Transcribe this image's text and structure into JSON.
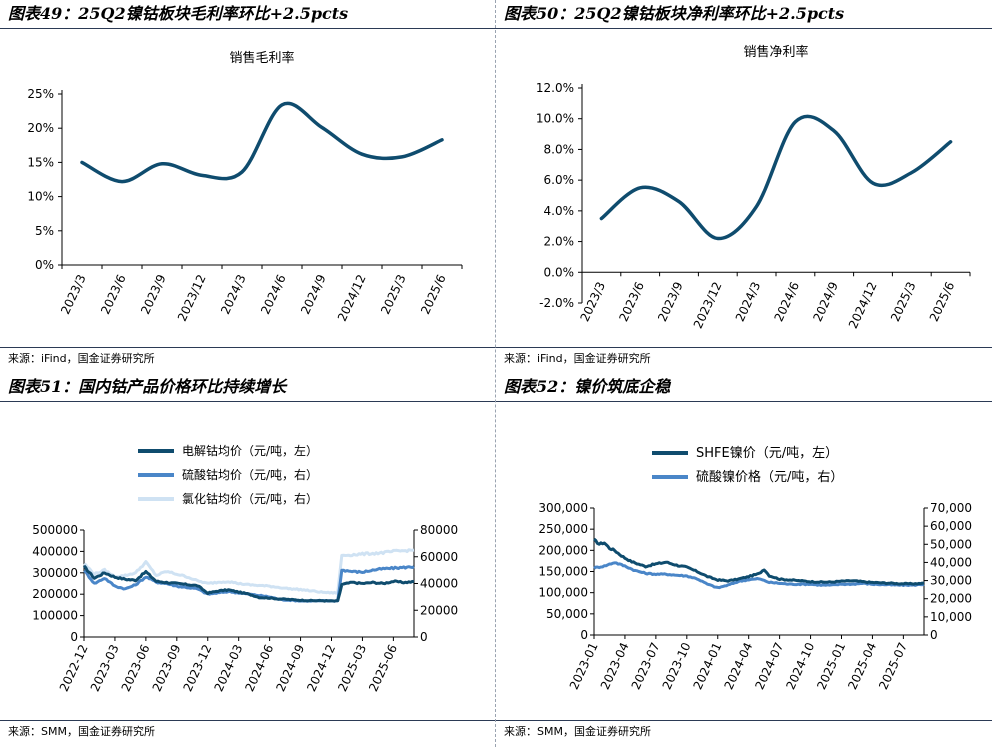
{
  "panels": [
    {
      "id": "49",
      "title": "图表49：25Q2镍钴板块毛利率环比+2.5pcts",
      "source": "来源：iFind，国金证券研究所"
    },
    {
      "id": "50",
      "title": "图表50：25Q2镍钴板块净利率环比+2.5pcts",
      "source": "来源：iFind，国金证券研究所"
    },
    {
      "id": "51",
      "title": "图表51：国内钴产品价格环比持续增长",
      "source": "来源：SMM，国金证券研究所"
    },
    {
      "id": "52",
      "title": "图表52：镍价筑底企稳",
      "source": "来源：SMM，国金证券研究所"
    }
  ],
  "chart_data": [
    {
      "type": "line",
      "title": "销售毛利率",
      "categories": [
        "2023/3",
        "2023/6",
        "2023/9",
        "2023/12",
        "2024/3",
        "2024/6",
        "2024/9",
        "2024/12",
        "2025/3",
        "2025/6"
      ],
      "series": [
        {
          "name": "销售毛利率",
          "values": [
            15.0,
            12.2,
            14.8,
            13.1,
            13.6,
            23.4,
            20.1,
            16.2,
            15.8,
            18.3
          ],
          "color": "#0f4c6e"
        }
      ],
      "ylim": [
        0,
        25
      ],
      "yticks": [
        0,
        5,
        10,
        15,
        20,
        25
      ],
      "ytick_labels": [
        "0%",
        "5%",
        "10%",
        "15%",
        "20%",
        "25%"
      ]
    },
    {
      "type": "line",
      "title": "销售净利率",
      "categories": [
        "2023/3",
        "2023/6",
        "2023/9",
        "2023/12",
        "2024/3",
        "2024/6",
        "2024/9",
        "2024/12",
        "2025/3",
        "2025/6"
      ],
      "series": [
        {
          "name": "销售净利率",
          "values": [
            3.5,
            5.5,
            4.6,
            2.2,
            4.3,
            9.8,
            9.2,
            5.8,
            6.5,
            8.5
          ],
          "color": "#0f4c6e"
        }
      ],
      "ylim": [
        -2,
        12
      ],
      "yticks": [
        -2,
        0,
        2,
        4,
        6,
        8,
        10,
        12
      ],
      "ytick_labels": [
        "-2.0%",
        "0.0%",
        "2.0%",
        "4.0%",
        "6.0%",
        "8.0%",
        "10.0%",
        "12.0%"
      ]
    },
    {
      "type": "line",
      "title": "",
      "x_labels": [
        "2022-12",
        "2023-03",
        "2023-06",
        "2023-09",
        "2023-12",
        "2024-03",
        "2024-06",
        "2024-09",
        "2024-12",
        "2025-03",
        "2025-06"
      ],
      "x_label_positions": [
        0,
        3,
        6,
        9,
        12,
        15,
        18,
        21,
        24,
        27,
        30
      ],
      "x_range": [
        0,
        32
      ],
      "ylim_left": [
        0,
        500000
      ],
      "yticks_left": [
        0,
        100000,
        200000,
        300000,
        400000,
        500000
      ],
      "ytick_labels_left": [
        "0",
        "100000",
        "200000",
        "300000",
        "400000",
        "500000"
      ],
      "ylim_right": [
        0,
        80000
      ],
      "yticks_right": [
        0,
        20000,
        40000,
        60000,
        80000
      ],
      "ytick_labels_right": [
        "0",
        "20000",
        "40000",
        "60000",
        "80000"
      ],
      "series": [
        {
          "name": "电解钴均价（元/吨，左）",
          "axis": "left",
          "color": "#0f4c6e",
          "x": [
            0,
            1,
            2,
            3,
            4,
            5,
            6,
            7,
            8,
            9,
            10,
            11,
            12,
            13,
            14,
            15,
            16,
            17,
            18,
            19,
            20,
            21,
            22,
            23,
            24,
            24.6,
            25,
            26,
            27,
            28,
            29,
            30,
            31,
            32
          ],
          "values": [
            330000,
            275000,
            300000,
            280000,
            270000,
            265000,
            305000,
            260000,
            255000,
            250000,
            245000,
            240000,
            205000,
            215000,
            220000,
            210000,
            200000,
            185000,
            182000,
            178000,
            175000,
            172000,
            170000,
            170000,
            168000,
            168000,
            245000,
            255000,
            250000,
            255000,
            250000,
            260000,
            255000,
            258000
          ]
        },
        {
          "name": "硫酸钴均价（元/吨，右）",
          "axis": "right",
          "color": "#4a86c8",
          "x": [
            0,
            1,
            2,
            3,
            4,
            5,
            6,
            7,
            8,
            9,
            10,
            11,
            12,
            13,
            14,
            15,
            16,
            17,
            18,
            19,
            20,
            21,
            22,
            23,
            24,
            24.6,
            25,
            26,
            27,
            28,
            29,
            30,
            31,
            32
          ],
          "values": [
            50000,
            40000,
            44000,
            38000,
            36000,
            39000,
            45000,
            41000,
            40000,
            38000,
            37000,
            36000,
            32000,
            33000,
            34000,
            33000,
            32000,
            31000,
            30000,
            28000,
            27500,
            27000,
            27000,
            27000,
            27000,
            27000,
            50000,
            49000,
            48500,
            50000,
            51000,
            51500,
            52000,
            52500
          ]
        },
        {
          "name": "氯化钴均价（元/吨，右）",
          "axis": "right",
          "color": "#cfe2f3",
          "x": [
            0,
            1,
            2,
            3,
            4,
            5,
            6,
            7,
            8,
            9,
            10,
            11,
            12,
            13,
            14,
            15,
            16,
            17,
            18,
            19,
            20,
            21,
            22,
            23,
            24,
            24.6,
            25,
            26,
            27,
            28,
            29,
            30,
            31,
            32
          ],
          "values": [
            55000,
            47000,
            50000,
            45000,
            46000,
            48000,
            56000,
            46000,
            49000,
            47000,
            45000,
            42000,
            40000,
            41000,
            41500,
            40000,
            39000,
            38500,
            38000,
            37000,
            36000,
            35500,
            34500,
            33500,
            33000,
            33000,
            61000,
            61500,
            62000,
            62500,
            63000,
            64000,
            64500,
            65000
          ]
        }
      ]
    },
    {
      "type": "line",
      "title": "",
      "x_labels": [
        "2023-01",
        "2023-04",
        "2023-07",
        "2023-10",
        "2024-01",
        "2024-04",
        "2024-07",
        "2024-10",
        "2025-01",
        "2025-04",
        "2025-07"
      ],
      "x_label_positions": [
        0,
        3,
        6,
        9,
        12,
        15,
        18,
        21,
        24,
        27,
        30
      ],
      "x_range": [
        0,
        32
      ],
      "ylim_left": [
        0,
        300000
      ],
      "yticks_left": [
        0,
        50000,
        100000,
        150000,
        200000,
        250000,
        300000
      ],
      "ytick_labels_left": [
        "0",
        "50,000",
        "100,000",
        "150,000",
        "200,000",
        "250,000",
        "300,000"
      ],
      "ylim_right": [
        0,
        70000
      ],
      "yticks_right": [
        0,
        10000,
        20000,
        30000,
        40000,
        50000,
        60000,
        70000
      ],
      "ytick_labels_right": [
        "0",
        "10,000",
        "20,000",
        "30,000",
        "40,000",
        "50,000",
        "60,000",
        "70,000"
      ],
      "series": [
        {
          "name": "SHFE镍价（元/吨，左）",
          "axis": "left",
          "color": "#0f4c6e",
          "x": [
            0,
            0.5,
            1,
            1.5,
            2,
            2.5,
            3,
            3.5,
            4,
            5,
            6,
            7,
            8,
            9,
            10,
            11,
            12,
            13,
            14,
            15,
            16,
            16.5,
            17,
            18,
            19,
            20,
            21,
            22,
            23,
            24,
            25,
            26,
            27,
            28,
            29,
            30,
            31,
            32
          ],
          "values": [
            225000,
            215000,
            218000,
            205000,
            200000,
            190000,
            182000,
            175000,
            170000,
            162000,
            168000,
            172000,
            165000,
            160000,
            150000,
            138000,
            130000,
            128000,
            132000,
            138000,
            145000,
            155000,
            140000,
            132000,
            130000,
            128000,
            126000,
            125000,
            125000,
            127000,
            128000,
            126000,
            124000,
            123000,
            122000,
            121000,
            121000,
            122000
          ]
        },
        {
          "name": "硫酸镍价格（元/吨，右）",
          "axis": "right",
          "color": "#4a86c8",
          "x": [
            0,
            1,
            2,
            3,
            4,
            5,
            6,
            7,
            8,
            9,
            10,
            11,
            12,
            13,
            14,
            15,
            16,
            17,
            18,
            19,
            20,
            21,
            22,
            23,
            24,
            25,
            26,
            27,
            28,
            29,
            30,
            31,
            32
          ],
          "values": [
            37000,
            38000,
            40000,
            38000,
            35500,
            34000,
            33500,
            33500,
            33000,
            32500,
            31000,
            28000,
            26000,
            27500,
            29500,
            30500,
            31000,
            29000,
            28500,
            28000,
            28000,
            28000,
            27500,
            27500,
            28000,
            28000,
            28500,
            28000,
            27800,
            27600,
            27500,
            27500,
            28000
          ]
        }
      ]
    }
  ]
}
